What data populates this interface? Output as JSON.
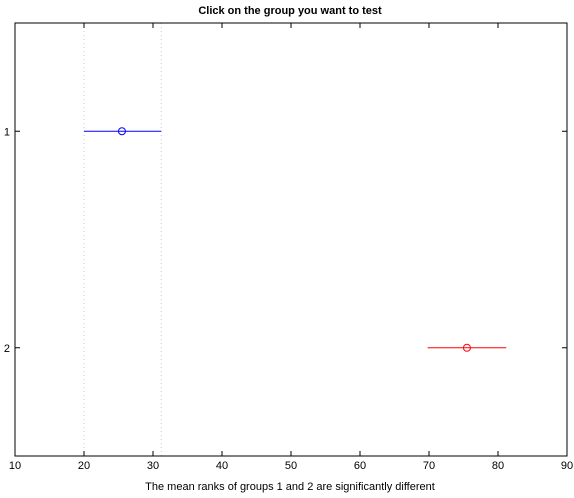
{
  "chart_data": {
    "type": "scatter",
    "title": "Click on the group you want to test",
    "xlabel": "The mean ranks of groups 1 and 2 are significantly different",
    "ylabel": "",
    "xlim": [
      10,
      90
    ],
    "ylim": [
      0.5,
      2.5
    ],
    "y_reversed": true,
    "xticks": [
      10,
      20,
      30,
      40,
      50,
      60,
      70,
      80,
      90
    ],
    "yticks": [
      1,
      2
    ],
    "xtick_labels": [
      "10",
      "20",
      "30",
      "40",
      "50",
      "60",
      "70",
      "80",
      "90"
    ],
    "ytick_labels": [
      "1",
      "2"
    ],
    "reference_lines": [
      20,
      31.2
    ],
    "series": [
      {
        "group": "1",
        "y": 1,
        "mean": 25.5,
        "lower": 20,
        "upper": 31.2,
        "color": "#0000ff"
      },
      {
        "group": "2",
        "y": 2,
        "mean": 75.5,
        "lower": 69.8,
        "upper": 81.2,
        "color": "#ff0000"
      }
    ],
    "grid": false,
    "legend": "none"
  }
}
